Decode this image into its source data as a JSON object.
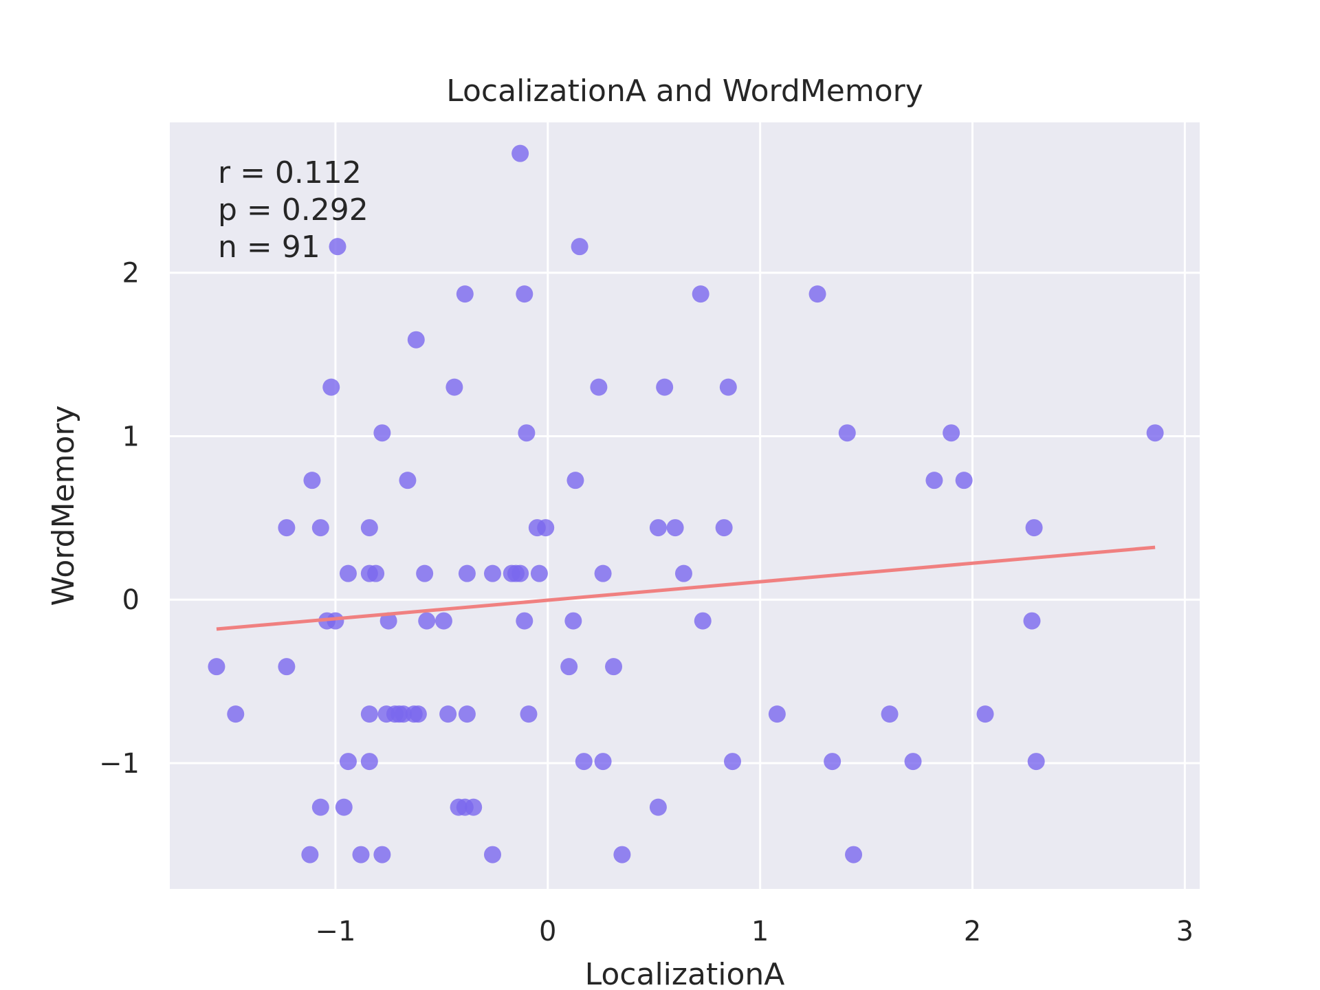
{
  "chart_data": {
    "type": "scatter",
    "title": "LocalizationA and WordMemory",
    "xlabel": "LocalizationA",
    "ylabel": "WordMemory",
    "xlim": [
      -1.78,
      3.07
    ],
    "ylim": [
      -1.77,
      2.92
    ],
    "xticks": [
      -1,
      0,
      1,
      2,
      3
    ],
    "yticks": [
      -1,
      0,
      1,
      2
    ],
    "xtick_labels": [
      "−1",
      "0",
      "1",
      "2",
      "3"
    ],
    "ytick_labels": [
      "−1",
      "0",
      "1",
      "2"
    ],
    "grid": true,
    "stats": {
      "r": "r = 0.112",
      "p": "p = 0.292",
      "n": "n = 91"
    },
    "regression_line": {
      "x": [
        -1.56,
        2.86
      ],
      "y": [
        -0.18,
        0.32
      ]
    },
    "points": [
      {
        "x": -0.13,
        "y": 2.73
      },
      {
        "x": -0.99,
        "y": 2.16
      },
      {
        "x": 0.15,
        "y": 2.16
      },
      {
        "x": -0.39,
        "y": 1.87
      },
      {
        "x": -0.11,
        "y": 1.87
      },
      {
        "x": 0.72,
        "y": 1.87
      },
      {
        "x": 1.27,
        "y": 1.87
      },
      {
        "x": -0.62,
        "y": 1.59
      },
      {
        "x": -1.02,
        "y": 1.3
      },
      {
        "x": -0.44,
        "y": 1.3
      },
      {
        "x": 0.24,
        "y": 1.3
      },
      {
        "x": 0.55,
        "y": 1.3
      },
      {
        "x": 0.85,
        "y": 1.3
      },
      {
        "x": -0.78,
        "y": 1.02
      },
      {
        "x": -0.1,
        "y": 1.02
      },
      {
        "x": 1.41,
        "y": 1.02
      },
      {
        "x": 1.9,
        "y": 1.02
      },
      {
        "x": 2.86,
        "y": 1.02
      },
      {
        "x": -1.11,
        "y": 0.73
      },
      {
        "x": -0.66,
        "y": 0.73
      },
      {
        "x": 0.13,
        "y": 0.73
      },
      {
        "x": 1.82,
        "y": 0.73
      },
      {
        "x": 1.96,
        "y": 0.73
      },
      {
        "x": -1.23,
        "y": 0.44
      },
      {
        "x": -1.07,
        "y": 0.44
      },
      {
        "x": -0.84,
        "y": 0.44
      },
      {
        "x": -0.05,
        "y": 0.44
      },
      {
        "x": -0.01,
        "y": 0.44
      },
      {
        "x": 0.52,
        "y": 0.44
      },
      {
        "x": 0.6,
        "y": 0.44
      },
      {
        "x": 0.83,
        "y": 0.44
      },
      {
        "x": 2.29,
        "y": 0.44
      },
      {
        "x": -0.94,
        "y": 0.16
      },
      {
        "x": -0.84,
        "y": 0.16
      },
      {
        "x": -0.81,
        "y": 0.16
      },
      {
        "x": -0.58,
        "y": 0.16
      },
      {
        "x": -0.38,
        "y": 0.16
      },
      {
        "x": -0.26,
        "y": 0.16
      },
      {
        "x": -0.17,
        "y": 0.16
      },
      {
        "x": -0.15,
        "y": 0.16
      },
      {
        "x": -0.13,
        "y": 0.16
      },
      {
        "x": -0.04,
        "y": 0.16
      },
      {
        "x": 0.26,
        "y": 0.16
      },
      {
        "x": 0.64,
        "y": 0.16
      },
      {
        "x": -1.04,
        "y": -0.13
      },
      {
        "x": -1.0,
        "y": -0.13
      },
      {
        "x": -0.75,
        "y": -0.13
      },
      {
        "x": -0.57,
        "y": -0.13
      },
      {
        "x": -0.49,
        "y": -0.13
      },
      {
        "x": -0.11,
        "y": -0.13
      },
      {
        "x": 0.12,
        "y": -0.13
      },
      {
        "x": 0.73,
        "y": -0.13
      },
      {
        "x": 2.28,
        "y": -0.13
      },
      {
        "x": -1.56,
        "y": -0.41
      },
      {
        "x": -1.23,
        "y": -0.41
      },
      {
        "x": 0.1,
        "y": -0.41
      },
      {
        "x": 0.31,
        "y": -0.41
      },
      {
        "x": -1.47,
        "y": -0.7
      },
      {
        "x": -0.84,
        "y": -0.7
      },
      {
        "x": -0.76,
        "y": -0.7
      },
      {
        "x": -0.72,
        "y": -0.7
      },
      {
        "x": -0.7,
        "y": -0.7
      },
      {
        "x": -0.68,
        "y": -0.7
      },
      {
        "x": -0.63,
        "y": -0.7
      },
      {
        "x": -0.61,
        "y": -0.7
      },
      {
        "x": -0.47,
        "y": -0.7
      },
      {
        "x": -0.38,
        "y": -0.7
      },
      {
        "x": -0.09,
        "y": -0.7
      },
      {
        "x": 1.08,
        "y": -0.7
      },
      {
        "x": 1.61,
        "y": -0.7
      },
      {
        "x": 2.06,
        "y": -0.7
      },
      {
        "x": -0.94,
        "y": -0.99
      },
      {
        "x": -0.84,
        "y": -0.99
      },
      {
        "x": 0.17,
        "y": -0.99
      },
      {
        "x": 0.26,
        "y": -0.99
      },
      {
        "x": 0.87,
        "y": -0.99
      },
      {
        "x": 1.34,
        "y": -0.99
      },
      {
        "x": 1.72,
        "y": -0.99
      },
      {
        "x": 2.3,
        "y": -0.99
      },
      {
        "x": -1.07,
        "y": -1.27
      },
      {
        "x": -0.96,
        "y": -1.27
      },
      {
        "x": -0.42,
        "y": -1.27
      },
      {
        "x": -0.39,
        "y": -1.27
      },
      {
        "x": -0.35,
        "y": -1.27
      },
      {
        "x": 0.52,
        "y": -1.27
      },
      {
        "x": -1.12,
        "y": -1.56
      },
      {
        "x": -0.88,
        "y": -1.56
      },
      {
        "x": -0.78,
        "y": -1.56
      },
      {
        "x": -0.26,
        "y": -1.56
      },
      {
        "x": 0.35,
        "y": -1.56
      },
      {
        "x": 1.44,
        "y": -1.56
      }
    ],
    "colors": {
      "background": "#eaeaf2",
      "grid": "#ffffff",
      "points": "#7b68ee",
      "regression": "#f08080",
      "text": "#262626"
    }
  }
}
